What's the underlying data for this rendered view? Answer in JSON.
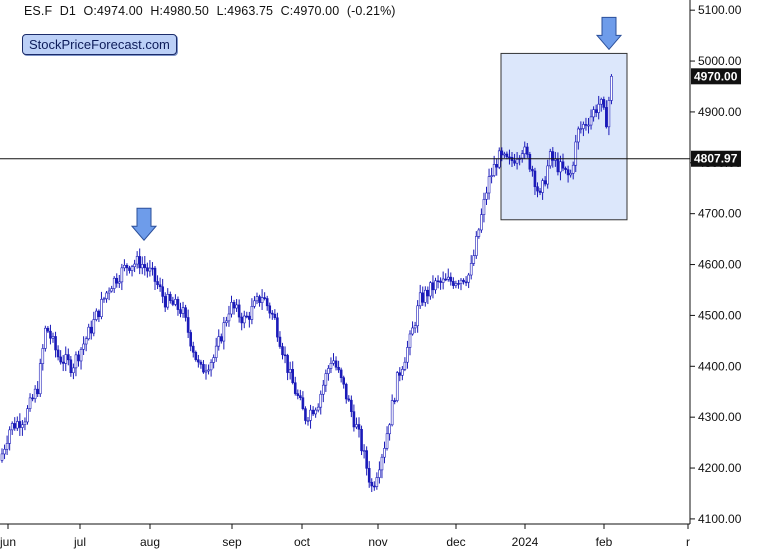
{
  "header": {
    "symbol": "ES.F",
    "timeframe": "D1",
    "open": "O:4974.00",
    "high": "H:4980.50",
    "low": "L:4963.75",
    "close": "C:4970.00",
    "change": "(-0.21%)"
  },
  "brand": "StockPriceForecast.com",
  "colors": {
    "candle": "#1a1ab8",
    "box_fill": "#dce7fb",
    "box_stroke": "#333333",
    "arrow_fill": "#6e9cea",
    "arrow_stroke": "#2b4f9a",
    "label_bg": "#111111",
    "label_text": "#ffffff"
  },
  "chart_data": {
    "type": "candlestick",
    "y_range": [
      4090,
      5120
    ],
    "y_ticks": [
      "4100.00",
      "4200.00",
      "4300.00",
      "4400.00",
      "4500.00",
      "4600.00",
      "4700.00",
      "4800.00",
      "4900.00",
      "5000.00",
      "5100.00"
    ],
    "x_labels": [
      "jun",
      "jul",
      "aug",
      "sep",
      "oct",
      "nov",
      "dec",
      "2024",
      "feb",
      "r"
    ],
    "price_label": "4970.00",
    "price_value": 4970,
    "level_label": "4807.97",
    "level_value": 4807.97,
    "box": {
      "start_label": "dec",
      "end_label": "feb",
      "low": 4688,
      "high": 5015
    },
    "annotations": [
      {
        "type": "arrow-down",
        "near": "aug",
        "value": 4640
      },
      {
        "type": "arrow-down",
        "near": "feb",
        "value": 5015
      }
    ],
    "path_nodes": [
      [
        0,
        4215
      ],
      [
        10,
        4280
      ],
      [
        25,
        4300
      ],
      [
        38,
        4360
      ],
      [
        46,
        4480
      ],
      [
        58,
        4420
      ],
      [
        72,
        4400
      ],
      [
        90,
        4470
      ],
      [
        110,
        4560
      ],
      [
        128,
        4600
      ],
      [
        140,
        4605
      ],
      [
        152,
        4580
      ],
      [
        165,
        4530
      ],
      [
        182,
        4510
      ],
      [
        200,
        4390
      ],
      [
        215,
        4420
      ],
      [
        230,
        4520
      ],
      [
        245,
        4490
      ],
      [
        262,
        4540
      ],
      [
        275,
        4490
      ],
      [
        290,
        4380
      ],
      [
        305,
        4300
      ],
      [
        318,
        4330
      ],
      [
        332,
        4420
      ],
      [
        345,
        4350
      ],
      [
        358,
        4270
      ],
      [
        372,
        4160
      ],
      [
        385,
        4250
      ],
      [
        398,
        4380
      ],
      [
        410,
        4450
      ],
      [
        420,
        4530
      ],
      [
        435,
        4560
      ],
      [
        455,
        4570
      ],
      [
        470,
        4580
      ],
      [
        478,
        4660
      ],
      [
        488,
        4760
      ],
      [
        498,
        4810
      ],
      [
        510,
        4800
      ],
      [
        522,
        4830
      ],
      [
        532,
        4790
      ],
      [
        540,
        4730
      ],
      [
        550,
        4810
      ],
      [
        560,
        4790
      ],
      [
        570,
        4770
      ],
      [
        578,
        4860
      ],
      [
        590,
        4890
      ],
      [
        600,
        4920
      ],
      [
        606,
        4880
      ],
      [
        612,
        4970
      ],
      [
        614,
        4970
      ]
    ]
  }
}
